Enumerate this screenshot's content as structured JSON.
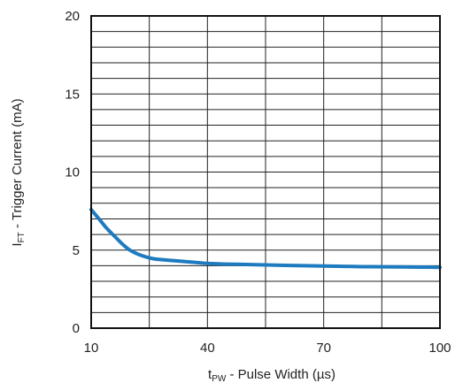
{
  "chart_data": {
    "type": "line",
    "x_axis": {
      "label_main": "t",
      "label_sub": "PW",
      "label_rest": " - Pulse Width (µs)",
      "min": 10,
      "max": 100,
      "ticks": [
        {
          "label": "10",
          "value": 10
        },
        {
          "label": "40",
          "value": 40
        },
        {
          "label": "70",
          "value": 70
        },
        {
          "label": "100",
          "value": 100
        }
      ],
      "vertical_gridlines": 6
    },
    "y_axis": {
      "label_main": "I",
      "label_sub": "FT",
      "label_rest": " - Trigger Current (mA)",
      "min": 0,
      "max": 20,
      "ticks": [
        0,
        5,
        10,
        15,
        20
      ],
      "minor_step": 1
    },
    "grid": true,
    "series": [
      {
        "color": "#1e7bbf",
        "x": [
          10,
          11,
          12,
          14,
          16,
          18,
          20,
          23,
          26,
          30,
          35,
          40,
          45,
          50,
          55,
          60,
          65,
          70,
          75,
          80,
          85,
          90,
          95,
          100
        ],
        "y": [
          7.6,
          7.3,
          7.0,
          6.4,
          5.9,
          5.4,
          5.0,
          4.65,
          4.45,
          4.35,
          4.25,
          4.15,
          4.1,
          4.08,
          4.05,
          4.02,
          4.0,
          3.98,
          3.96,
          3.94,
          3.93,
          3.92,
          3.91,
          3.9
        ]
      }
    ]
  }
}
